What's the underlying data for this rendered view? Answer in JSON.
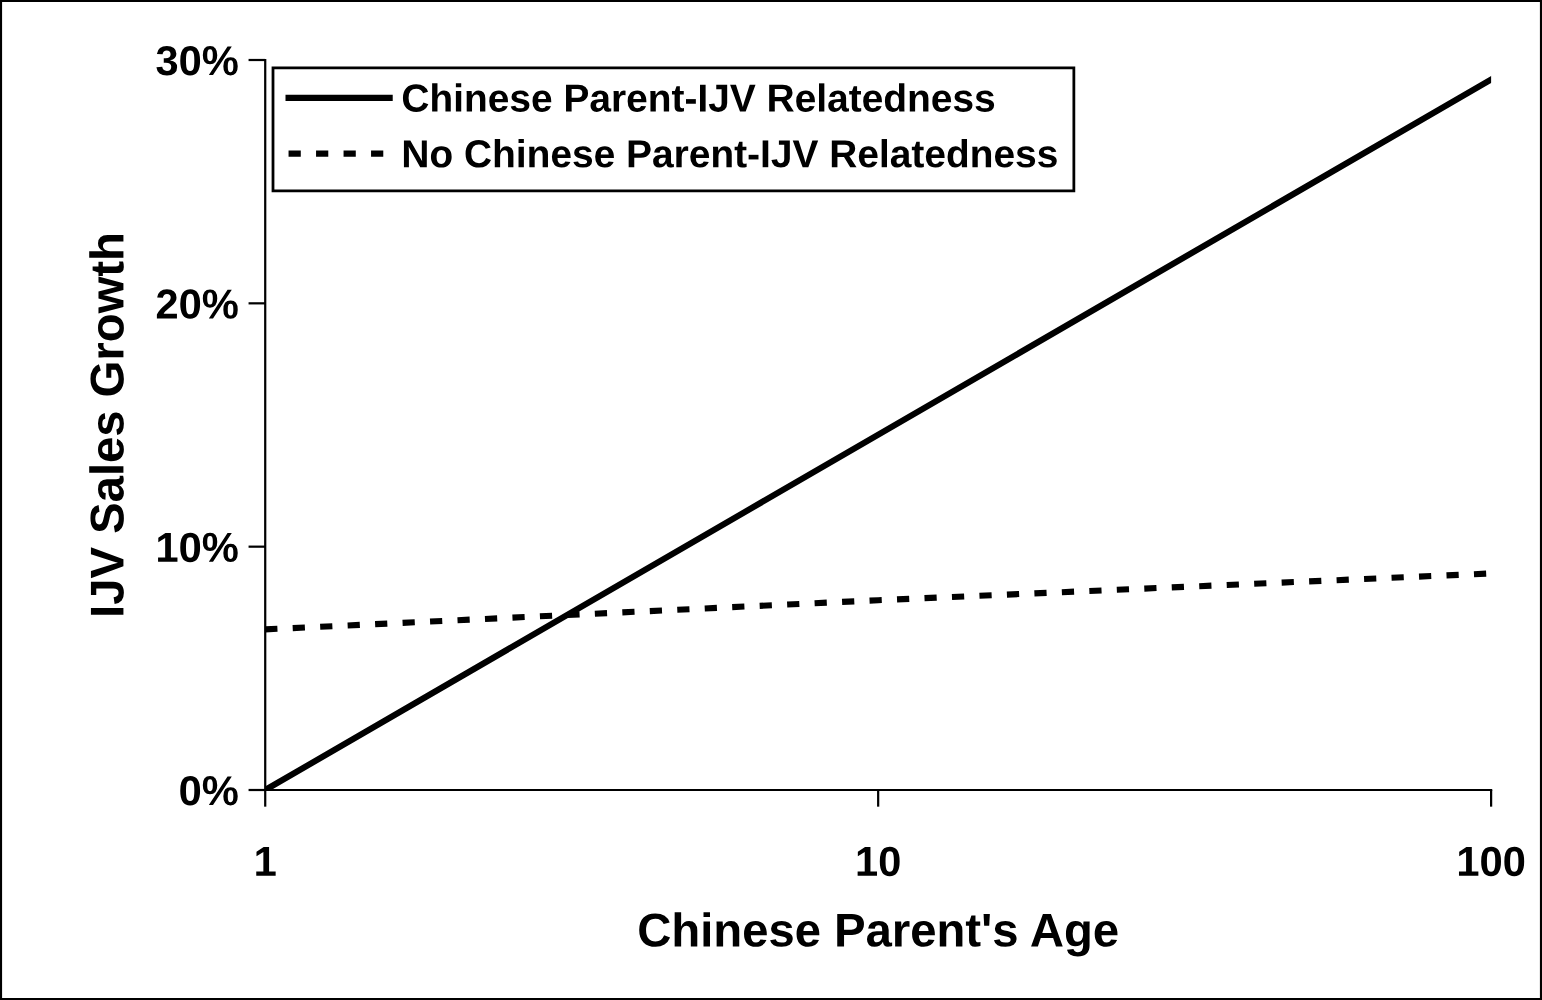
{
  "chart_data": {
    "type": "line",
    "xlabel": "Chinese Parent's Age",
    "ylabel": "IJV Sales Growth",
    "log": "x",
    "xlim": [
      1,
      100
    ],
    "xticks": [
      1,
      10,
      100
    ],
    "ylim": [
      0,
      30
    ],
    "yticks": [
      {
        "value": 0,
        "label": "0%"
      },
      {
        "value": 10,
        "label": "10%"
      },
      {
        "value": 20,
        "label": "20%"
      },
      {
        "value": 30,
        "label": "30%"
      }
    ],
    "grid": false,
    "legend": "top left",
    "marker": "none",
    "series": [
      {
        "name": "Chinese Parent-IJV Relatedness",
        "color": "#000000",
        "line_style": "solid",
        "x": [
          1,
          100
        ],
        "values": [
          0,
          29.2
        ]
      },
      {
        "name": "No Chinese Parent-IJV Relatedness",
        "color": "#000000",
        "line_style": "dotted",
        "x": [
          1,
          10,
          100
        ],
        "values": [
          6.6,
          7.8,
          8.9
        ]
      }
    ]
  }
}
